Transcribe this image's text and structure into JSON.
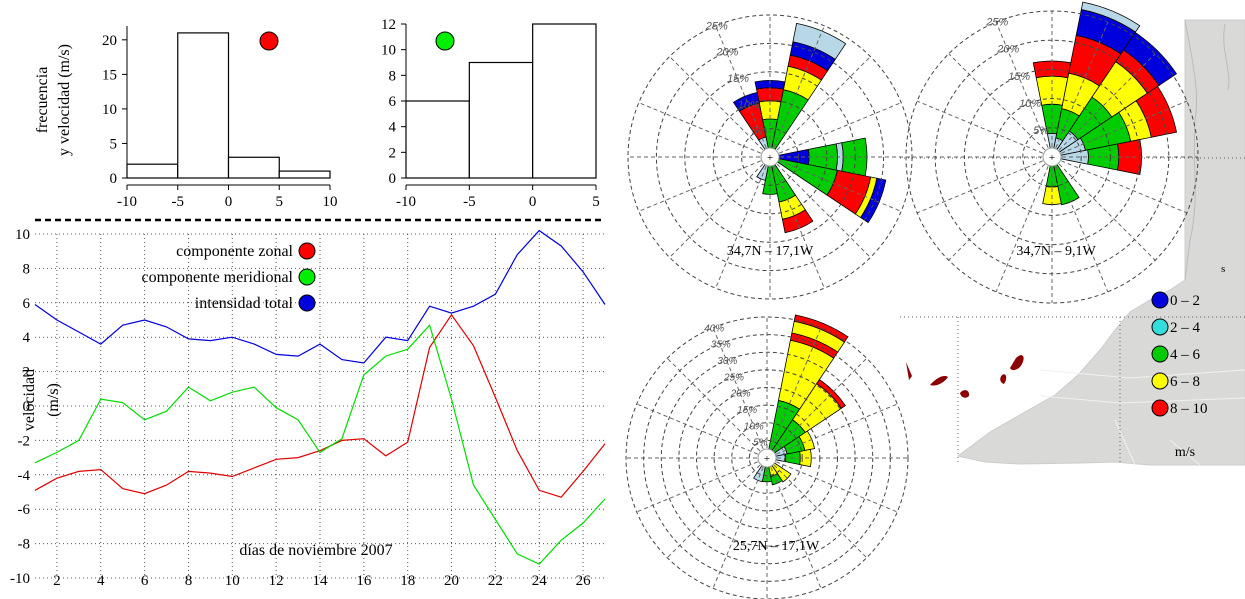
{
  "chart_data": [
    {
      "type": "bar",
      "ylabel_lines": [
        "frecuencia",
        "y velocidad (m/s)"
      ],
      "bin_edges": [
        -10,
        -5,
        0,
        5,
        10
      ],
      "values": [
        2,
        21,
        3,
        1
      ],
      "xlim": [
        -10,
        10
      ],
      "ylim": [
        0,
        22
      ],
      "x_ticks": [
        "-10",
        "-5",
        "0",
        "5",
        "10"
      ],
      "y_ticks": [
        "0",
        "5",
        "10",
        "15",
        "20"
      ],
      "marker_color": "#ff0000"
    },
    {
      "type": "bar",
      "bin_edges": [
        -10,
        -5,
        0,
        5
      ],
      "values": [
        6,
        9,
        12
      ],
      "xlim": [
        -10,
        5
      ],
      "ylim": [
        0,
        12
      ],
      "x_ticks": [
        "-10",
        "-5",
        "0",
        "5"
      ],
      "y_ticks": [
        "0",
        "2",
        "4",
        "6",
        "8",
        "10",
        "12"
      ],
      "marker_color": "#00ee00"
    },
    {
      "type": "line",
      "xlabel": "días de noviembre 2007",
      "ylabel_lines": [
        "velocidad",
        "(m/s)"
      ],
      "x": [
        1,
        2,
        3,
        4,
        5,
        6,
        7,
        8,
        9,
        10,
        11,
        12,
        13,
        14,
        15,
        16,
        17,
        18,
        19,
        20,
        21,
        22,
        23,
        24,
        25,
        26,
        27
      ],
      "xlim": [
        1,
        27
      ],
      "ylim": [
        -10,
        10
      ],
      "x_ticks": [
        "2",
        "4",
        "6",
        "8",
        "10",
        "12",
        "14",
        "16",
        "18",
        "20",
        "22",
        "24",
        "26"
      ],
      "y_ticks": [
        "-10",
        "-8",
        "-6",
        "-4",
        "-2",
        "0",
        "2",
        "4",
        "6",
        "8",
        "10"
      ],
      "grid": true,
      "legend_position": "top-center",
      "series": [
        {
          "name": "componente zonal",
          "color": "#e00000",
          "values": [
            -4.9,
            -4.2,
            -3.8,
            -3.7,
            -4.8,
            -5.1,
            -4.6,
            -3.8,
            -3.9,
            -4.1,
            -3.6,
            -3.1,
            -3.0,
            -2.6,
            -2.0,
            -1.9,
            -2.9,
            -2.1,
            3.4,
            5.3,
            3.5,
            0.5,
            -2.6,
            -4.9,
            -5.3,
            -3.8,
            -2.2
          ]
        },
        {
          "name": "componente meridional",
          "color": "#00dd00",
          "values": [
            -3.3,
            -2.7,
            -2.0,
            0.4,
            0.2,
            -0.8,
            -0.3,
            1.1,
            0.3,
            0.8,
            1.1,
            -0.1,
            -0.8,
            -2.7,
            -1.9,
            1.8,
            2.9,
            3.3,
            4.7,
            0.4,
            -4.6,
            -6.6,
            -8.6,
            -9.2,
            -7.8,
            -6.8,
            -5.4
          ]
        },
        {
          "name": "intensidad total",
          "color": "#0000dd",
          "values": [
            5.9,
            5.0,
            4.3,
            3.6,
            4.7,
            5.0,
            4.6,
            3.9,
            3.8,
            4.0,
            3.6,
            3.0,
            2.9,
            3.6,
            2.7,
            2.5,
            4.0,
            3.8,
            5.8,
            5.4,
            5.8,
            6.5,
            8.8,
            10.2,
            9.3,
            7.8,
            5.9
          ]
        }
      ]
    },
    {
      "type": "windrose",
      "label": "34,7N – 17,1W",
      "rings": [
        "5%",
        "10%",
        "15%",
        "20%",
        "25%"
      ],
      "unit_value": 5,
      "petals": [
        {
          "dir": 22.5,
          "segments": [
            [
              "#00cc00",
              10.5
            ],
            [
              "#ffff00",
              4.2
            ],
            [
              "#ff0000",
              2.0
            ],
            [
              "#0000dd",
              2.4
            ],
            [
              "#b8d8e8",
              3.3
            ]
          ]
        },
        {
          "dir": 0,
          "segments": [
            [
              "#00cc00",
              5.1
            ],
            [
              "#ffff00",
              3.2
            ],
            [
              "#ff0000",
              2.3
            ],
            [
              "#0000dd",
              1.3
            ]
          ]
        },
        {
          "dir": 337.5,
          "segments": [
            [
              "#b8d8e8",
              2.0
            ],
            [
              "#ff0000",
              6.1
            ],
            [
              "#0000dd",
              1.9
            ]
          ]
        },
        {
          "dir": 90,
          "segments": [
            [
              "#0000dd",
              5.3
            ],
            [
              "#00cc00",
              5.0
            ],
            [
              "#b8d8e8",
              1.0
            ],
            [
              "#00cc00",
              4.2
            ]
          ]
        },
        {
          "dir": 112.5,
          "segments": [
            [
              "#00cc00",
              10.5
            ],
            [
              "#ff0000",
              6.0
            ],
            [
              "#ffff00",
              1.1
            ],
            [
              "#0000dd",
              1.6
            ]
          ]
        },
        {
          "dir": 157.5,
          "segments": [
            [
              "#00cc00",
              6.5
            ],
            [
              "#ffff00",
              3.1
            ],
            [
              "#ff0000",
              2.4
            ]
          ]
        },
        {
          "dir": 180,
          "segments": [
            [
              "#00cc00",
              5.0
            ]
          ]
        },
        {
          "dir": 202.5,
          "segments": [
            [
              "#b8d8e8",
              2.6
            ]
          ]
        }
      ]
    },
    {
      "type": "windrose",
      "label": "34,7N – 9,1W",
      "rings": [
        "5%",
        "10%",
        "15%",
        "20%",
        "25%"
      ],
      "unit_value": 5,
      "petals": [
        {
          "dir": 22.5,
          "segments": [
            [
              "#b8d8e8",
              1.8
            ],
            [
              "#00cc00",
              5.1
            ],
            [
              "#ffff00",
              6.2
            ],
            [
              "#ff0000",
              6.6
            ],
            [
              "#0000dd",
              4.5
            ],
            [
              "#b8d8e8",
              1.3
            ]
          ]
        },
        {
          "dir": 0,
          "segments": [
            [
              "#b8d8e8",
              2.5
            ],
            [
              "#00cc00",
              5.0
            ],
            [
              "#ffff00",
              4.8
            ],
            [
              "#ff0000",
              2.6
            ]
          ]
        },
        {
          "dir": 45,
          "segments": [
            [
              "#b8d8e8",
              3.8
            ],
            [
              "#00cc00",
              7.0
            ],
            [
              "#ffff00",
              7.3
            ],
            [
              "#ff0000",
              2.4
            ],
            [
              "#0000dd",
              3.6
            ]
          ]
        },
        {
          "dir": 67.5,
          "segments": [
            [
              "#b8d8e8",
              4.3
            ],
            [
              "#00cc00",
              7.9
            ],
            [
              "#ffff00",
              3.6
            ],
            [
              "#ff0000",
              4.4
            ]
          ]
        },
        {
          "dir": 90,
          "segments": [
            [
              "#b8d8e8",
              4.7
            ],
            [
              "#00cc00",
              5.2
            ],
            [
              "#ff0000",
              3.9
            ]
          ]
        },
        {
          "dir": 157.5,
          "segments": [
            [
              "#00cc00",
              6.8
            ]
          ]
        },
        {
          "dir": 180,
          "segments": [
            [
              "#00cc00",
              3.6
            ],
            [
              "#ffff00",
              3.0
            ]
          ]
        }
      ]
    },
    {
      "type": "windrose",
      "label": "25,7N – 17,1W",
      "rings": [
        "5%",
        "10%",
        "15%",
        "20%",
        "25%",
        "30%",
        "35%",
        "40%"
      ],
      "unit_value": 5,
      "petals": [
        {
          "dir": 22.5,
          "segments": [
            [
              "#00cc00",
              14.1
            ],
            [
              "#ffff00",
              17.4
            ],
            [
              "#ff0000",
              2.1
            ],
            [
              "#ffff00",
              3.4
            ],
            [
              "#ff0000",
              1.8
            ]
          ]
        },
        {
          "dir": 45,
          "segments": [
            [
              "#00cc00",
              10.5
            ],
            [
              "#ffff00",
              12.3
            ],
            [
              "#ff0000",
              1.4
            ]
          ]
        },
        {
          "dir": 67.5,
          "segments": [
            [
              "#b8d8e8",
              3.3
            ],
            [
              "#00cc00",
              5.1
            ],
            [
              "#ffff00",
              2.8
            ]
          ]
        },
        {
          "dir": 90,
          "segments": [
            [
              "#b8d8e8",
              2.7
            ],
            [
              "#00cc00",
              4.2
            ],
            [
              "#ffff00",
              3.1
            ]
          ]
        },
        {
          "dir": 135,
          "segments": [
            [
              "#ffff00",
              5.6
            ]
          ]
        },
        {
          "dir": 157.5,
          "segments": [
            [
              "#ffff00",
              2.8
            ],
            [
              "#00cc00",
              2.4
            ]
          ]
        },
        {
          "dir": 180,
          "segments": [
            [
              "#00cc00",
              4.2
            ]
          ]
        },
        {
          "dir": 202.5,
          "segments": [
            [
              "#b8d8e8",
              4.3
            ]
          ]
        }
      ]
    }
  ],
  "windrose_legend": {
    "items": [
      {
        "label": "0 – 2",
        "color": "#0000dd"
      },
      {
        "label": "2 – 4",
        "color": "#33dddd"
      },
      {
        "label": "4 – 6",
        "color": "#00cc00"
      },
      {
        "label": "6 – 8",
        "color": "#ffff00"
      },
      {
        "label": "8 – 10",
        "color": "#ff0000"
      }
    ],
    "unit": "m/s"
  },
  "map_label": "s"
}
